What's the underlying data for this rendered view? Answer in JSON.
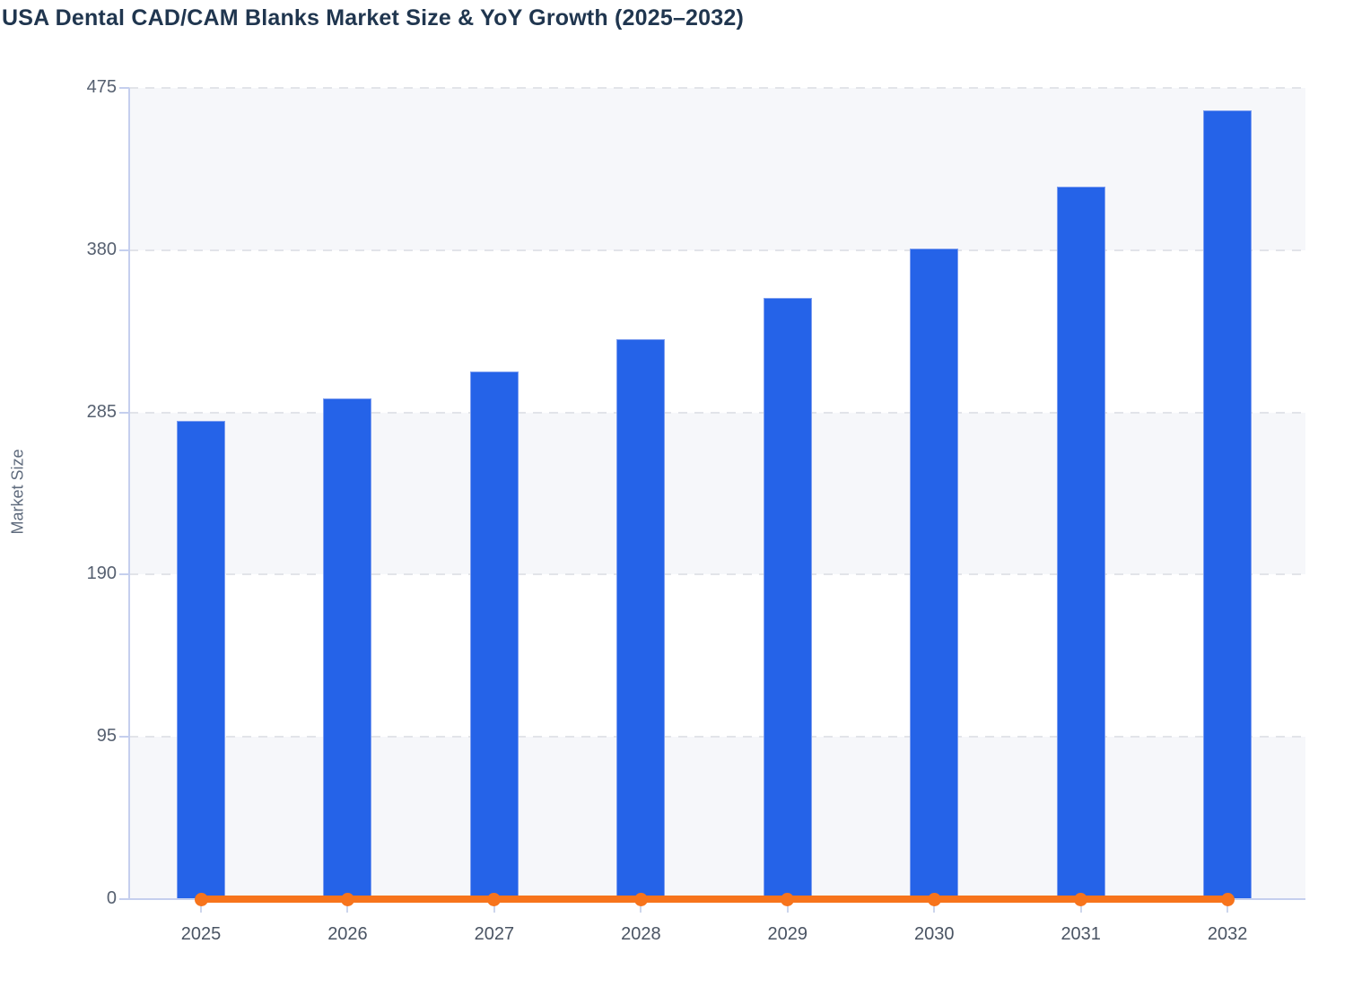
{
  "page": {
    "background": "#ffffff"
  },
  "chart_data": {
    "type": "bar",
    "title": "USA Dental CAD/CAM Blanks Market Size & YoY Growth (2025–2032)",
    "ylabel": "Market Size",
    "xlabel": "",
    "categories": [
      "2025",
      "2026",
      "2027",
      "2028",
      "2029",
      "2030",
      "2031",
      "2032"
    ],
    "series": [
      {
        "name": "Market Size",
        "type": "bar",
        "color": "#2563e8",
        "values": [
          280,
          293,
          309,
          328,
          352,
          381,
          417,
          462
        ]
      },
      {
        "name": "YoY Growth",
        "type": "line",
        "color": "#f7741c",
        "values": [
          0,
          0,
          0,
          0,
          0,
          0,
          0,
          0
        ]
      }
    ],
    "ylim": [
      0,
      475
    ],
    "y_ticks": [
      0,
      95,
      190,
      285,
      380,
      475
    ],
    "legend": "none",
    "grid": "horizontal-dashed",
    "styles": {
      "band_fill": "#f6f7fa",
      "band_fill_alt": "#ffffff",
      "grid_dash_color": "#e2e4e9",
      "axis_line_color": "#c5cfee",
      "title_color": "#20364f",
      "y_tick_label_color": "#566070",
      "x_label_color": "#4a5463"
    }
  }
}
